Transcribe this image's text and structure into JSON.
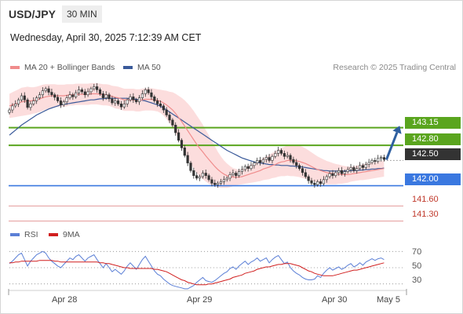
{
  "header": {
    "symbol": "USD/JPY",
    "timeframe": "30 MIN",
    "datetime": "Wednesday, April 30, 2025 7:12:39 AM CET"
  },
  "credit": "Research © 2025 Trading Central",
  "legend": {
    "ma20": "MA 20 + Bollinger Bands",
    "ma50": "MA 50",
    "rsi": "RSI",
    "rsi_ma": "9MA"
  },
  "colors": {
    "ma20": "#f08c8c",
    "ma50": "#3a5a9a",
    "bands": "#fbd2d2",
    "resistance": "#5aa51e",
    "support": "#3a78e0",
    "weak": "#e39a9a",
    "current": "#333333",
    "rsi": "#5b7fd6",
    "rsi_ma": "#d11f1f",
    "arrow": "#2e5fa0"
  },
  "levels": {
    "r2": "143.15",
    "r1": "142.80",
    "current": "142.50",
    "s1": "142.00",
    "s2": "141.60",
    "s3": "141.30"
  },
  "rsi_levels": [
    "70",
    "50",
    "30"
  ],
  "dates": [
    "Apr 28",
    "Apr 29",
    "Apr 30",
    "May 5"
  ],
  "chart_data": [
    {
      "type": "candlestick",
      "yrange": [
        141.17,
        144.2
      ],
      "levels": [
        143.15,
        142.8,
        142.5,
        142.0,
        141.6,
        141.3
      ],
      "closes": [
        143.5,
        143.58,
        143.62,
        143.7,
        143.78,
        143.7,
        143.55,
        143.62,
        143.68,
        143.74,
        143.8,
        143.88,
        143.92,
        143.85,
        143.8,
        143.75,
        143.68,
        143.6,
        143.66,
        143.74,
        143.8,
        143.76,
        143.84,
        143.9,
        143.86,
        143.8,
        143.86,
        143.92,
        143.96,
        143.9,
        143.82,
        143.74,
        143.8,
        143.72,
        143.64,
        143.68,
        143.62,
        143.56,
        143.62,
        143.7,
        143.76,
        143.7,
        143.66,
        143.74,
        143.82,
        143.9,
        143.84,
        143.76,
        143.68,
        143.62,
        143.58,
        143.5,
        143.4,
        143.3,
        143.2,
        143.05,
        142.9,
        142.75,
        142.6,
        142.45,
        142.3,
        142.2,
        142.15,
        142.18,
        142.25,
        142.2,
        142.12,
        142.05,
        142.02,
        142.05,
        142.08,
        142.12,
        142.15,
        142.22,
        142.25,
        142.2,
        142.28,
        142.32,
        142.38,
        142.34,
        142.4,
        142.45,
        142.5,
        142.46,
        142.52,
        142.56,
        142.5,
        142.58,
        142.64,
        142.7,
        142.64,
        142.58,
        142.6,
        142.52,
        142.46,
        142.4,
        142.34,
        142.26,
        142.18,
        142.1,
        142.05,
        142.02,
        142.08,
        142.04,
        142.12,
        142.18,
        142.24,
        142.2,
        142.26,
        142.3,
        142.24,
        142.28,
        142.32,
        142.36,
        142.3,
        142.34,
        142.4,
        142.36,
        142.42,
        142.46,
        142.5,
        142.48,
        142.54,
        142.56,
        142.52
      ],
      "ma20": [
        143.58,
        143.6,
        143.62,
        143.64,
        143.66,
        143.67,
        143.68,
        143.68,
        143.69,
        143.7,
        143.72,
        143.74,
        143.76,
        143.77,
        143.78,
        143.78,
        143.78,
        143.78,
        143.78,
        143.79,
        143.8,
        143.8,
        143.81,
        143.81,
        143.81,
        143.81,
        143.81,
        143.82,
        143.82,
        143.82,
        143.81,
        143.8,
        143.8,
        143.79,
        143.77,
        143.75,
        143.74,
        143.72,
        143.7,
        143.7,
        143.7,
        143.7,
        143.69,
        143.69,
        143.7,
        143.71,
        143.71,
        143.71,
        143.7,
        143.69,
        143.67,
        143.64,
        143.6,
        143.55,
        143.5,
        143.43,
        143.35,
        143.27,
        143.18,
        143.09,
        143.0,
        142.91,
        142.82,
        142.74,
        142.67,
        142.59,
        142.52,
        142.45,
        142.38,
        142.32,
        142.27,
        142.23,
        142.2,
        142.18,
        142.17,
        142.17,
        142.17,
        142.18,
        142.2,
        142.22,
        142.24,
        142.26,
        142.28,
        142.3,
        142.33,
        142.35,
        142.37,
        142.4,
        142.42,
        142.45,
        142.47,
        142.48,
        142.5,
        142.5,
        142.5,
        142.49,
        142.48,
        142.46,
        142.44,
        142.41,
        142.38,
        142.35,
        142.32,
        142.3,
        142.28,
        142.26,
        142.25,
        142.24,
        142.23,
        142.23,
        142.22,
        142.22,
        142.22,
        142.23,
        142.24,
        142.25,
        142.26,
        142.27,
        142.28,
        142.29,
        142.3,
        142.31,
        142.32,
        142.33,
        142.34
      ],
      "ma50": [
        143.0,
        143.05,
        143.1,
        143.15,
        143.2,
        143.24,
        143.28,
        143.32,
        143.36,
        143.4,
        143.43,
        143.46,
        143.49,
        143.52,
        143.54,
        143.56,
        143.58,
        143.6,
        143.61,
        143.62,
        143.63,
        143.64,
        143.65,
        143.66,
        143.67,
        143.68,
        143.69,
        143.7,
        143.7,
        143.71,
        143.72,
        143.72,
        143.73,
        143.73,
        143.73,
        143.73,
        143.73,
        143.73,
        143.73,
        143.73,
        143.72,
        143.72,
        143.71,
        143.7,
        143.69,
        143.68,
        143.66,
        143.64,
        143.62,
        143.6,
        143.57,
        143.54,
        143.5,
        143.46,
        143.42,
        143.38,
        143.34,
        143.3,
        143.26,
        143.22,
        143.18,
        143.14,
        143.1,
        143.06,
        143.02,
        142.98,
        142.94,
        142.9,
        142.86,
        142.82,
        142.78,
        142.74,
        142.7,
        142.67,
        142.64,
        142.61,
        142.58,
        142.55,
        142.53,
        142.51,
        142.49,
        142.47,
        142.46,
        142.45,
        142.44,
        142.43,
        142.42,
        142.42,
        142.41,
        142.41,
        142.4,
        142.4,
        142.4,
        142.39,
        142.39,
        142.38,
        142.38,
        142.37,
        142.36,
        142.35,
        142.34,
        142.33,
        142.32,
        142.31,
        142.3,
        142.3,
        142.29,
        142.29,
        142.29,
        142.29,
        142.29,
        142.29,
        142.29,
        142.3,
        142.3,
        142.3,
        142.31,
        142.31,
        142.32,
        142.32,
        142.33,
        142.33,
        142.34,
        142.34,
        142.35
      ],
      "band_width": [
        0.24,
        0.25,
        0.26,
        0.27,
        0.28,
        0.28,
        0.28,
        0.27,
        0.26,
        0.26,
        0.26,
        0.26,
        0.25,
        0.24,
        0.23,
        0.23,
        0.22,
        0.22,
        0.22,
        0.22,
        0.21,
        0.21,
        0.21,
        0.21,
        0.21,
        0.21,
        0.21,
        0.21,
        0.21,
        0.21,
        0.21,
        0.21,
        0.21,
        0.21,
        0.21,
        0.22,
        0.22,
        0.22,
        0.22,
        0.22,
        0.22,
        0.22,
        0.22,
        0.22,
        0.22,
        0.22,
        0.22,
        0.22,
        0.22,
        0.22,
        0.23,
        0.25,
        0.28,
        0.31,
        0.35,
        0.39,
        0.43,
        0.47,
        0.51,
        0.54,
        0.56,
        0.57,
        0.57,
        0.56,
        0.54,
        0.51,
        0.48,
        0.44,
        0.4,
        0.35,
        0.31,
        0.27,
        0.24,
        0.21,
        0.18,
        0.16,
        0.15,
        0.15,
        0.16,
        0.17,
        0.18,
        0.19,
        0.2,
        0.21,
        0.22,
        0.23,
        0.24,
        0.25,
        0.26,
        0.27,
        0.28,
        0.29,
        0.3,
        0.31,
        0.31,
        0.31,
        0.31,
        0.31,
        0.3,
        0.29,
        0.28,
        0.27,
        0.26,
        0.25,
        0.24,
        0.23,
        0.22,
        0.21,
        0.2,
        0.19,
        0.18,
        0.17,
        0.16,
        0.15,
        0.15,
        0.15,
        0.15,
        0.16,
        0.16,
        0.16,
        0.16,
        0.16,
        0.16,
        0.16,
        0.16
      ]
    },
    {
      "type": "line",
      "yrange": [
        20,
        80
      ],
      "levels": [
        70,
        50,
        30
      ],
      "rsi": [
        55,
        58,
        62,
        66,
        68,
        60,
        52,
        58,
        62,
        66,
        68,
        70,
        68,
        62,
        58,
        55,
        52,
        50,
        54,
        58,
        62,
        60,
        64,
        66,
        62,
        58,
        62,
        64,
        66,
        60,
        55,
        50,
        55,
        50,
        45,
        48,
        45,
        42,
        46,
        52,
        56,
        52,
        48,
        54,
        60,
        64,
        58,
        52,
        46,
        42,
        40,
        36,
        33,
        30,
        28,
        27,
        26,
        25,
        24,
        24,
        26,
        28,
        32,
        35,
        38,
        34,
        33,
        32,
        34,
        37,
        40,
        43,
        45,
        49,
        51,
        48,
        52,
        55,
        58,
        54,
        57,
        59,
        62,
        58,
        60,
        62,
        56,
        60,
        63,
        65,
        60,
        55,
        57,
        50,
        46,
        43,
        41,
        38,
        36,
        35,
        35,
        36,
        40,
        38,
        43,
        47,
        50,
        47,
        49,
        51,
        48,
        50,
        53,
        55,
        51,
        53,
        56,
        53,
        57,
        59,
        61,
        59,
        61,
        62,
        60
      ],
      "rsi_ma": [
        56,
        56,
        57,
        57,
        58,
        58,
        58,
        58,
        58,
        58,
        59,
        59,
        59,
        59,
        59,
        58,
        58,
        57,
        57,
        57,
        57,
        57,
        57,
        57,
        57,
        57,
        57,
        57,
        57,
        57,
        56,
        56,
        55,
        55,
        54,
        53,
        52,
        51,
        50,
        50,
        49,
        49,
        49,
        49,
        49,
        49,
        49,
        49,
        48,
        48,
        47,
        46,
        45,
        43,
        41,
        39,
        37,
        35,
        34,
        32,
        31,
        30,
        29,
        29,
        29,
        29,
        30,
        30,
        31,
        32,
        33,
        34,
        35,
        36,
        38,
        39,
        40,
        41,
        43,
        44,
        45,
        46,
        48,
        49,
        50,
        51,
        51,
        52,
        53,
        54,
        54,
        55,
        55,
        55,
        54,
        53,
        52,
        50,
        48,
        46,
        45,
        43,
        42,
        41,
        40,
        40,
        40,
        40,
        41,
        42,
        43,
        44,
        45,
        46,
        47,
        47,
        48,
        49,
        50,
        51,
        52,
        53,
        54,
        55,
        56
      ]
    }
  ]
}
